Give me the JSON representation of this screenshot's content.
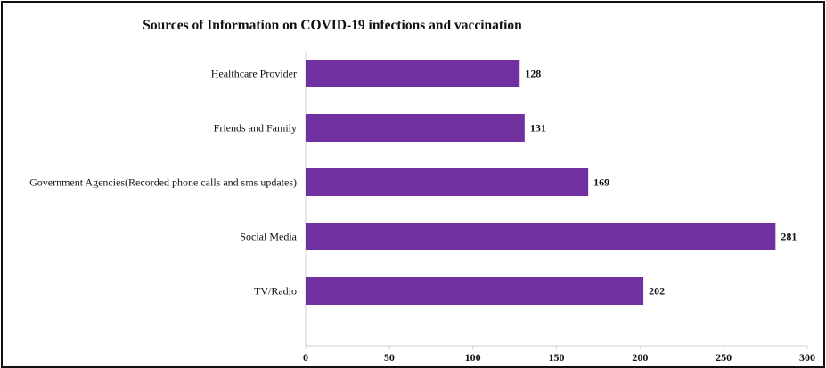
{
  "chart_data": {
    "type": "bar",
    "orientation": "horizontal",
    "title": "Sources of Information on COVID-19 infections and vaccination",
    "categories": [
      "Healthcare Provider",
      "Friends and Family",
      "Government Agencies(Recorded phone calls and sms updates)",
      "Social Media",
      "TV/Radio"
    ],
    "values": [
      128,
      131,
      169,
      281,
      202
    ],
    "xlim": [
      0,
      300
    ],
    "x_ticks": [
      "0",
      "50",
      "100",
      "150",
      "200",
      "250",
      "300"
    ],
    "xlabel": "",
    "ylabel": "",
    "grid": false,
    "data_labels": true,
    "bar_color": "#7030a0"
  }
}
